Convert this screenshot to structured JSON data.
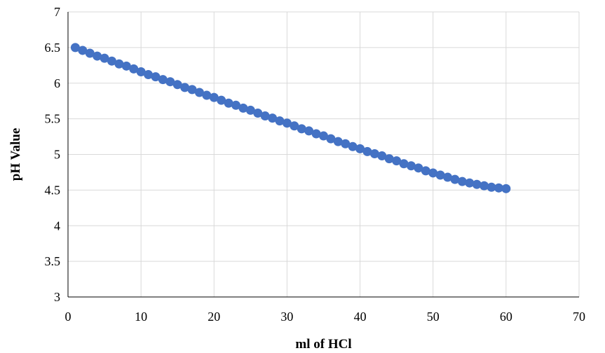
{
  "chart_data": {
    "type": "scatter",
    "title": "",
    "xlabel": "ml of HCl",
    "ylabel": "pH Value",
    "xlim": [
      0,
      70
    ],
    "ylim": [
      3,
      7
    ],
    "x_ticks": [
      "0",
      "10",
      "20",
      "30",
      "40",
      "50",
      "60",
      "70"
    ],
    "y_ticks": [
      "3",
      "3.5",
      "4",
      "4.5",
      "5",
      "5.5",
      "6",
      "6.5",
      "7"
    ],
    "grid": true,
    "legend": "none",
    "marker_color": "#4472C4",
    "gridline_color": "#D9D9D9",
    "series": [
      {
        "x": [
          1,
          2,
          3,
          4,
          5,
          6,
          7,
          8,
          9,
          10,
          11,
          12,
          13,
          14,
          15,
          16,
          17,
          18,
          19,
          20,
          21,
          22,
          23,
          24,
          25,
          26,
          27,
          28,
          29,
          30,
          31,
          32,
          33,
          34,
          35,
          36,
          37,
          38,
          39,
          40,
          41,
          42,
          43,
          44,
          45,
          46,
          47,
          48,
          49,
          50,
          51,
          52,
          53,
          54,
          55,
          56,
          57,
          58,
          59,
          60
        ],
        "y": [
          6.5,
          6.46,
          6.42,
          6.38,
          6.35,
          6.31,
          6.27,
          6.24,
          6.2,
          6.16,
          6.12,
          6.09,
          6.05,
          6.02,
          5.98,
          5.94,
          5.91,
          5.87,
          5.83,
          5.8,
          5.76,
          5.72,
          5.69,
          5.65,
          5.62,
          5.58,
          5.54,
          5.51,
          5.47,
          5.44,
          5.4,
          5.36,
          5.33,
          5.29,
          5.26,
          5.22,
          5.18,
          5.15,
          5.11,
          5.08,
          5.04,
          5.01,
          4.98,
          4.94,
          4.91,
          4.87,
          4.84,
          4.81,
          4.77,
          4.74,
          4.71,
          4.68,
          4.65,
          4.62,
          4.6,
          4.58,
          4.56,
          4.54,
          4.53,
          4.52
        ]
      }
    ]
  }
}
